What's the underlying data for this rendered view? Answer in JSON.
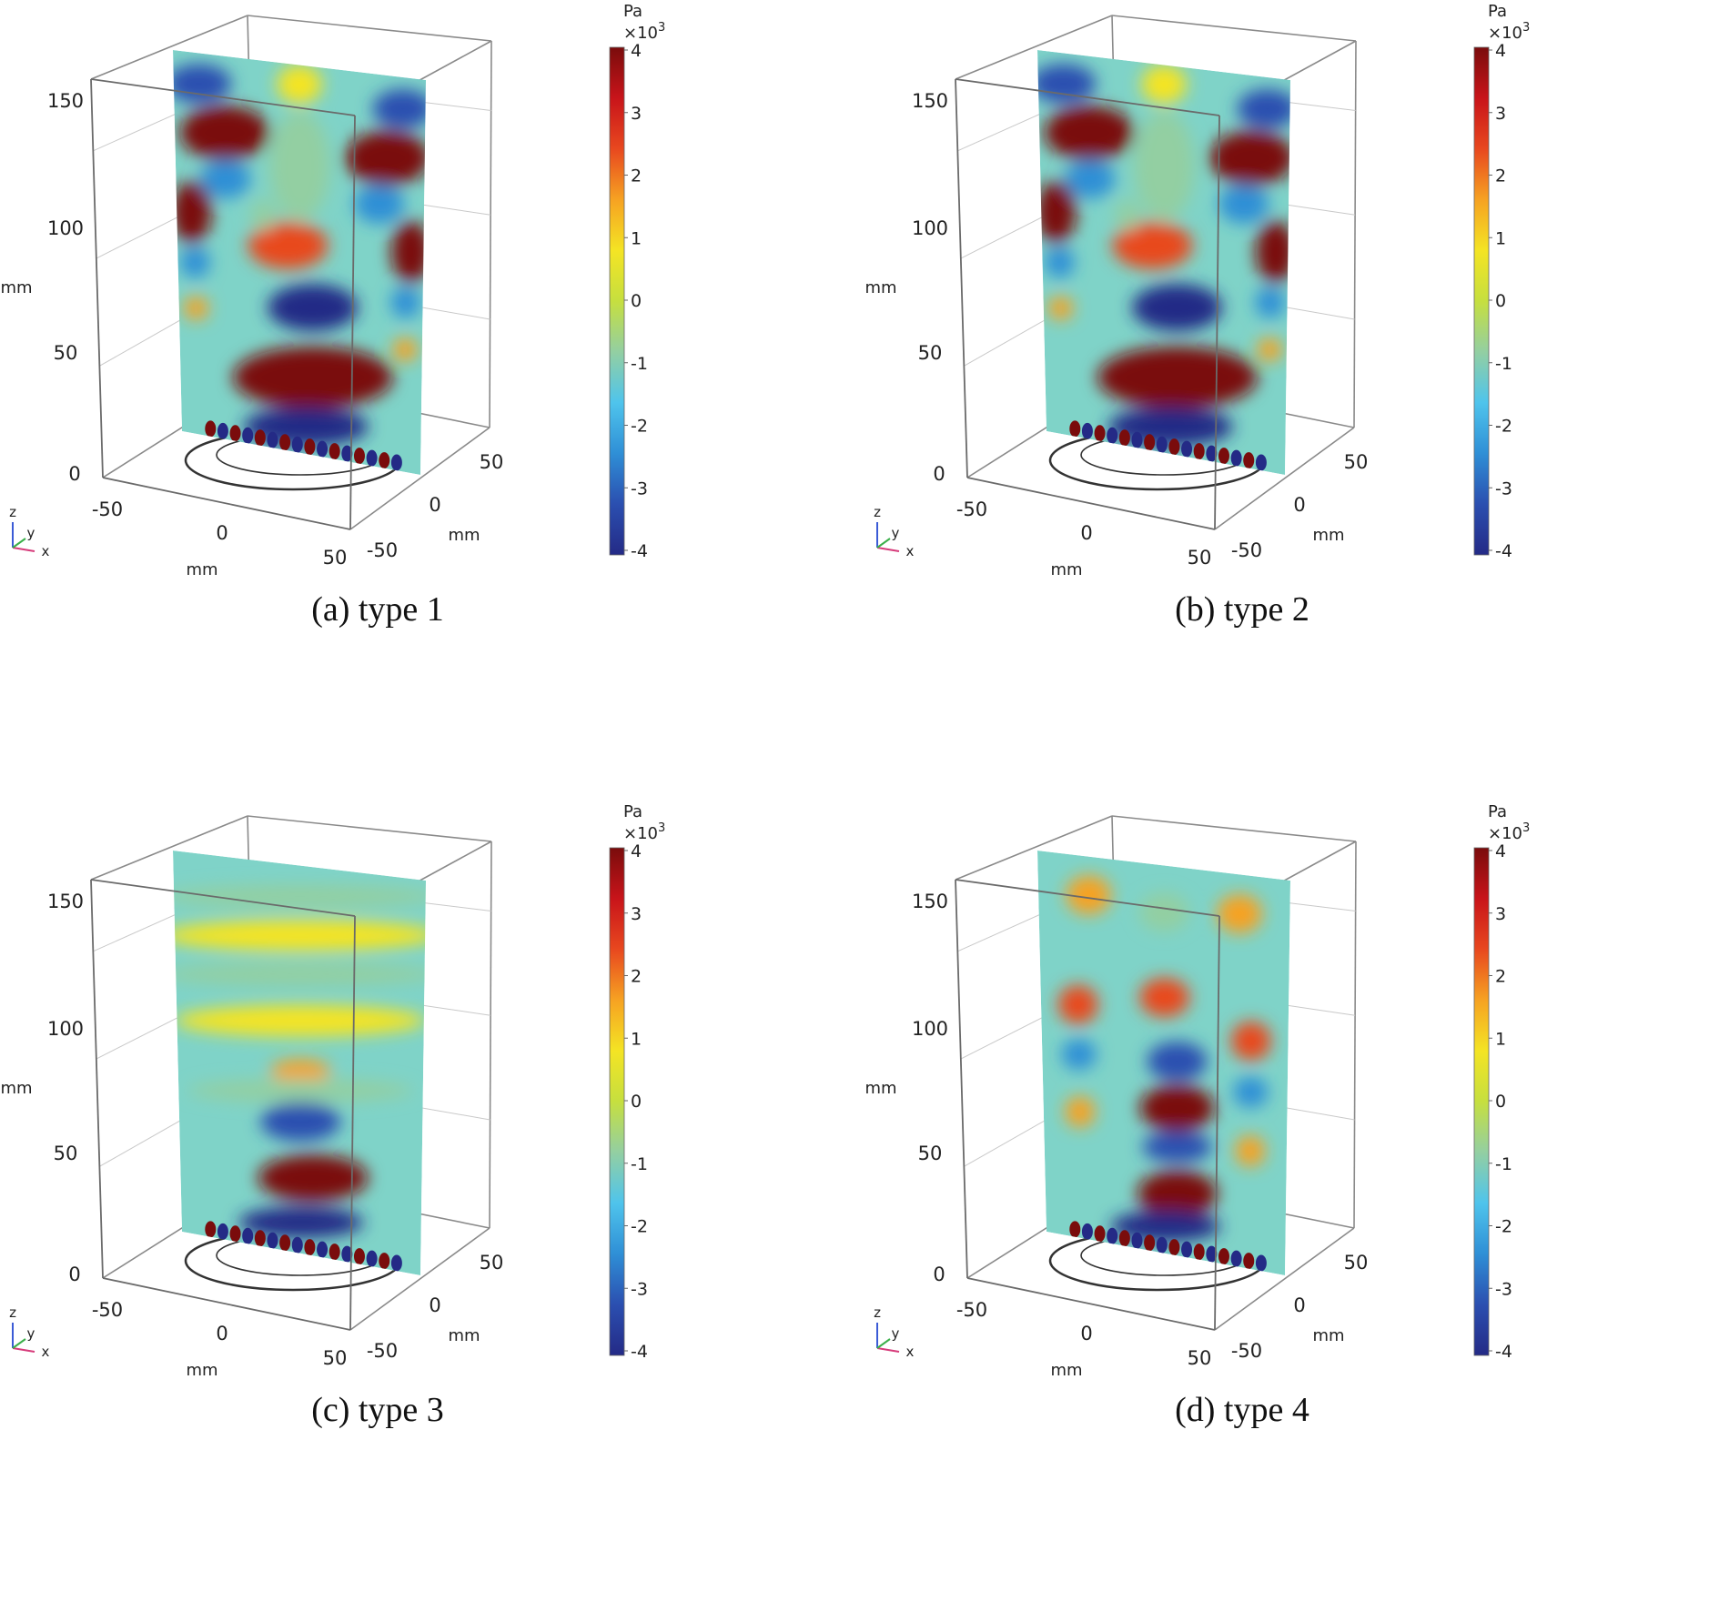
{
  "figure": {
    "colorbar": {
      "unit": "Pa",
      "multiplier_base": "×10",
      "multiplier_exp": "3",
      "ticks": [
        "4",
        "3",
        "2",
        "1",
        "0",
        "-1",
        "-2",
        "-3",
        "-4"
      ],
      "colors": [
        "#7a0c0c",
        "#c8141a",
        "#e8481f",
        "#f6a222",
        "#f4e424",
        "#c6df3f",
        "#93cfa2",
        "#4fc4ec",
        "#2f8fd6",
        "#2b4fb0",
        "#242a86"
      ]
    },
    "axes_labels": {
      "z_ticks": [
        "150",
        "100",
        "50",
        "0"
      ],
      "z_unit": "mm",
      "x_ticks": [
        "-50",
        "0",
        "50"
      ],
      "x_unit": "mm",
      "y_ticks": [
        "50",
        "0",
        "-50"
      ],
      "y_unit": "mm",
      "triad": {
        "z": "z",
        "y": "y",
        "x": "x"
      }
    }
  },
  "chart_data": [
    {
      "type": "heatmap",
      "caption": "(a) type 1",
      "quantity_unit": "Pa",
      "colorbar_range": [
        -4000,
        4000
      ],
      "field_pattern": "strong standing-wave lobes across full height",
      "lobes": [
        {
          "u": 0.1,
          "z": 0.92,
          "rx": 0.13,
          "rz": 0.05,
          "value": -3.4
        },
        {
          "u": 0.91,
          "z": 0.92,
          "rx": 0.12,
          "rz": 0.05,
          "value": -3.4
        },
        {
          "u": 0.5,
          "z": 0.95,
          "rx": 0.09,
          "rz": 0.05,
          "value": 1.2
        },
        {
          "u": 0.2,
          "z": 0.8,
          "rx": 0.18,
          "rz": 0.07,
          "value": 3.7
        },
        {
          "u": 0.85,
          "z": 0.79,
          "rx": 0.17,
          "rz": 0.07,
          "value": 3.7
        },
        {
          "u": 0.5,
          "z": 0.74,
          "rx": 0.12,
          "rz": 0.14,
          "value": -1.0
        },
        {
          "u": 0.2,
          "z": 0.68,
          "rx": 0.1,
          "rz": 0.05,
          "value": -2.2
        },
        {
          "u": 0.82,
          "z": 0.67,
          "rx": 0.1,
          "rz": 0.05,
          "value": -2.2
        },
        {
          "u": 0.06,
          "z": 0.58,
          "rx": 0.08,
          "rz": 0.08,
          "value": 4.0
        },
        {
          "u": 0.95,
          "z": 0.56,
          "rx": 0.08,
          "rz": 0.08,
          "value": 4.0
        },
        {
          "u": 0.45,
          "z": 0.53,
          "rx": 0.16,
          "rz": 0.06,
          "value": 2.8
        },
        {
          "u": 0.35,
          "z": 0.6,
          "rx": 0.05,
          "rz": 0.04,
          "value": -1.0
        },
        {
          "u": 0.07,
          "z": 0.45,
          "rx": 0.06,
          "rz": 0.04,
          "value": -2.0
        },
        {
          "u": 0.93,
          "z": 0.43,
          "rx": 0.06,
          "rz": 0.04,
          "value": -2.0
        },
        {
          "u": 0.55,
          "z": 0.38,
          "rx": 0.18,
          "rz": 0.06,
          "value": -3.7
        },
        {
          "u": 0.07,
          "z": 0.33,
          "rx": 0.05,
          "rz": 0.03,
          "value": 1.8
        },
        {
          "u": 0.93,
          "z": 0.31,
          "rx": 0.05,
          "rz": 0.03,
          "value": 1.8
        },
        {
          "u": 0.55,
          "z": 0.2,
          "rx": 0.32,
          "rz": 0.08,
          "value": 3.9
        },
        {
          "u": 0.52,
          "z": 0.07,
          "rx": 0.25,
          "rz": 0.05,
          "value": -3.8
        }
      ]
    },
    {
      "type": "heatmap",
      "caption": "(b) type 2",
      "quantity_unit": "Pa",
      "colorbar_range": [
        -4000,
        4000
      ],
      "field_pattern": "nearly identical to type 1",
      "lobes": [
        {
          "u": 0.1,
          "z": 0.92,
          "rx": 0.13,
          "rz": 0.05,
          "value": -3.4
        },
        {
          "u": 0.91,
          "z": 0.92,
          "rx": 0.12,
          "rz": 0.05,
          "value": -3.4
        },
        {
          "u": 0.5,
          "z": 0.95,
          "rx": 0.09,
          "rz": 0.05,
          "value": 1.2
        },
        {
          "u": 0.2,
          "z": 0.8,
          "rx": 0.18,
          "rz": 0.07,
          "value": 3.7
        },
        {
          "u": 0.85,
          "z": 0.79,
          "rx": 0.17,
          "rz": 0.07,
          "value": 3.7
        },
        {
          "u": 0.5,
          "z": 0.74,
          "rx": 0.12,
          "rz": 0.14,
          "value": -1.0
        },
        {
          "u": 0.2,
          "z": 0.68,
          "rx": 0.1,
          "rz": 0.05,
          "value": -2.2
        },
        {
          "u": 0.82,
          "z": 0.67,
          "rx": 0.1,
          "rz": 0.05,
          "value": -2.2
        },
        {
          "u": 0.06,
          "z": 0.58,
          "rx": 0.08,
          "rz": 0.08,
          "value": 4.0
        },
        {
          "u": 0.95,
          "z": 0.56,
          "rx": 0.08,
          "rz": 0.08,
          "value": 4.0
        },
        {
          "u": 0.45,
          "z": 0.53,
          "rx": 0.16,
          "rz": 0.06,
          "value": 2.8
        },
        {
          "u": 0.35,
          "z": 0.6,
          "rx": 0.05,
          "rz": 0.04,
          "value": -1.0
        },
        {
          "u": 0.07,
          "z": 0.45,
          "rx": 0.06,
          "rz": 0.04,
          "value": -2.0
        },
        {
          "u": 0.93,
          "z": 0.43,
          "rx": 0.06,
          "rz": 0.04,
          "value": -2.0
        },
        {
          "u": 0.55,
          "z": 0.38,
          "rx": 0.18,
          "rz": 0.06,
          "value": -3.7
        },
        {
          "u": 0.07,
          "z": 0.33,
          "rx": 0.05,
          "rz": 0.03,
          "value": 1.8
        },
        {
          "u": 0.93,
          "z": 0.31,
          "rx": 0.05,
          "rz": 0.03,
          "value": 1.8
        },
        {
          "u": 0.55,
          "z": 0.2,
          "rx": 0.32,
          "rz": 0.08,
          "value": 3.9
        },
        {
          "u": 0.52,
          "z": 0.07,
          "rx": 0.25,
          "rz": 0.05,
          "value": -3.8
        }
      ]
    },
    {
      "type": "heatmap",
      "caption": "(c) type 3",
      "quantity_unit": "Pa",
      "colorbar_range": [
        -4000,
        4000
      ],
      "field_pattern": "concentric arcs with decaying amplitude",
      "lobes": [
        {
          "u": 0.55,
          "z": 0.2,
          "rx": 0.22,
          "rz": 0.06,
          "value": 3.8
        },
        {
          "u": 0.5,
          "z": 0.34,
          "rx": 0.16,
          "rz": 0.05,
          "value": -2.8
        },
        {
          "u": 0.5,
          "z": 0.47,
          "rx": 0.12,
          "rz": 0.03,
          "value": 2.0
        },
        {
          "u": 0.5,
          "z": 0.08,
          "rx": 0.25,
          "rz": 0.04,
          "value": -3.8
        },
        {
          "u": 0.5,
          "z": 0.42,
          "rx": 0.45,
          "rz": 0.03,
          "value": -1.0
        },
        {
          "u": 0.5,
          "z": 0.6,
          "rx": 0.5,
          "rz": 0.04,
          "value": 1.2
        },
        {
          "u": 0.5,
          "z": 0.72,
          "rx": 0.55,
          "rz": 0.03,
          "value": -0.9
        },
        {
          "u": 0.5,
          "z": 0.82,
          "rx": 0.55,
          "rz": 0.04,
          "value": 1.0
        },
        {
          "u": 0.5,
          "z": 0.92,
          "rx": 0.55,
          "rz": 0.03,
          "value": -0.8
        }
      ]
    },
    {
      "type": "heatmap",
      "caption": "(d) type 4",
      "quantity_unit": "Pa",
      "colorbar_range": [
        -4000,
        4000
      ],
      "field_pattern": "moderate lobes, three columns",
      "lobes": [
        {
          "u": 0.2,
          "z": 0.9,
          "rx": 0.09,
          "rz": 0.05,
          "value": 1.3
        },
        {
          "u": 0.8,
          "z": 0.9,
          "rx": 0.09,
          "rz": 0.05,
          "value": 1.3
        },
        {
          "u": 0.5,
          "z": 0.88,
          "rx": 0.1,
          "rz": 0.05,
          "value": -0.8
        },
        {
          "u": 0.5,
          "z": 0.66,
          "rx": 0.1,
          "rz": 0.05,
          "value": 2.8
        },
        {
          "u": 0.15,
          "z": 0.61,
          "rx": 0.08,
          "rz": 0.05,
          "value": 2.5
        },
        {
          "u": 0.85,
          "z": 0.58,
          "rx": 0.08,
          "rz": 0.05,
          "value": 2.5
        },
        {
          "u": 0.15,
          "z": 0.48,
          "rx": 0.07,
          "rz": 0.04,
          "value": -2.3
        },
        {
          "u": 0.85,
          "z": 0.45,
          "rx": 0.07,
          "rz": 0.04,
          "value": -2.3
        },
        {
          "u": 0.55,
          "z": 0.5,
          "rx": 0.12,
          "rz": 0.05,
          "value": -3.0
        },
        {
          "u": 0.55,
          "z": 0.38,
          "rx": 0.15,
          "rz": 0.06,
          "value": 3.7
        },
        {
          "u": 0.15,
          "z": 0.33,
          "rx": 0.06,
          "rz": 0.04,
          "value": 2.0
        },
        {
          "u": 0.85,
          "z": 0.3,
          "rx": 0.06,
          "rz": 0.04,
          "value": 2.0
        },
        {
          "u": 0.55,
          "z": 0.28,
          "rx": 0.14,
          "rz": 0.04,
          "value": -3.2
        },
        {
          "u": 0.55,
          "z": 0.16,
          "rx": 0.16,
          "rz": 0.06,
          "value": 3.9
        },
        {
          "u": 0.5,
          "z": 0.07,
          "rx": 0.22,
          "rz": 0.04,
          "value": -3.8
        }
      ]
    }
  ]
}
